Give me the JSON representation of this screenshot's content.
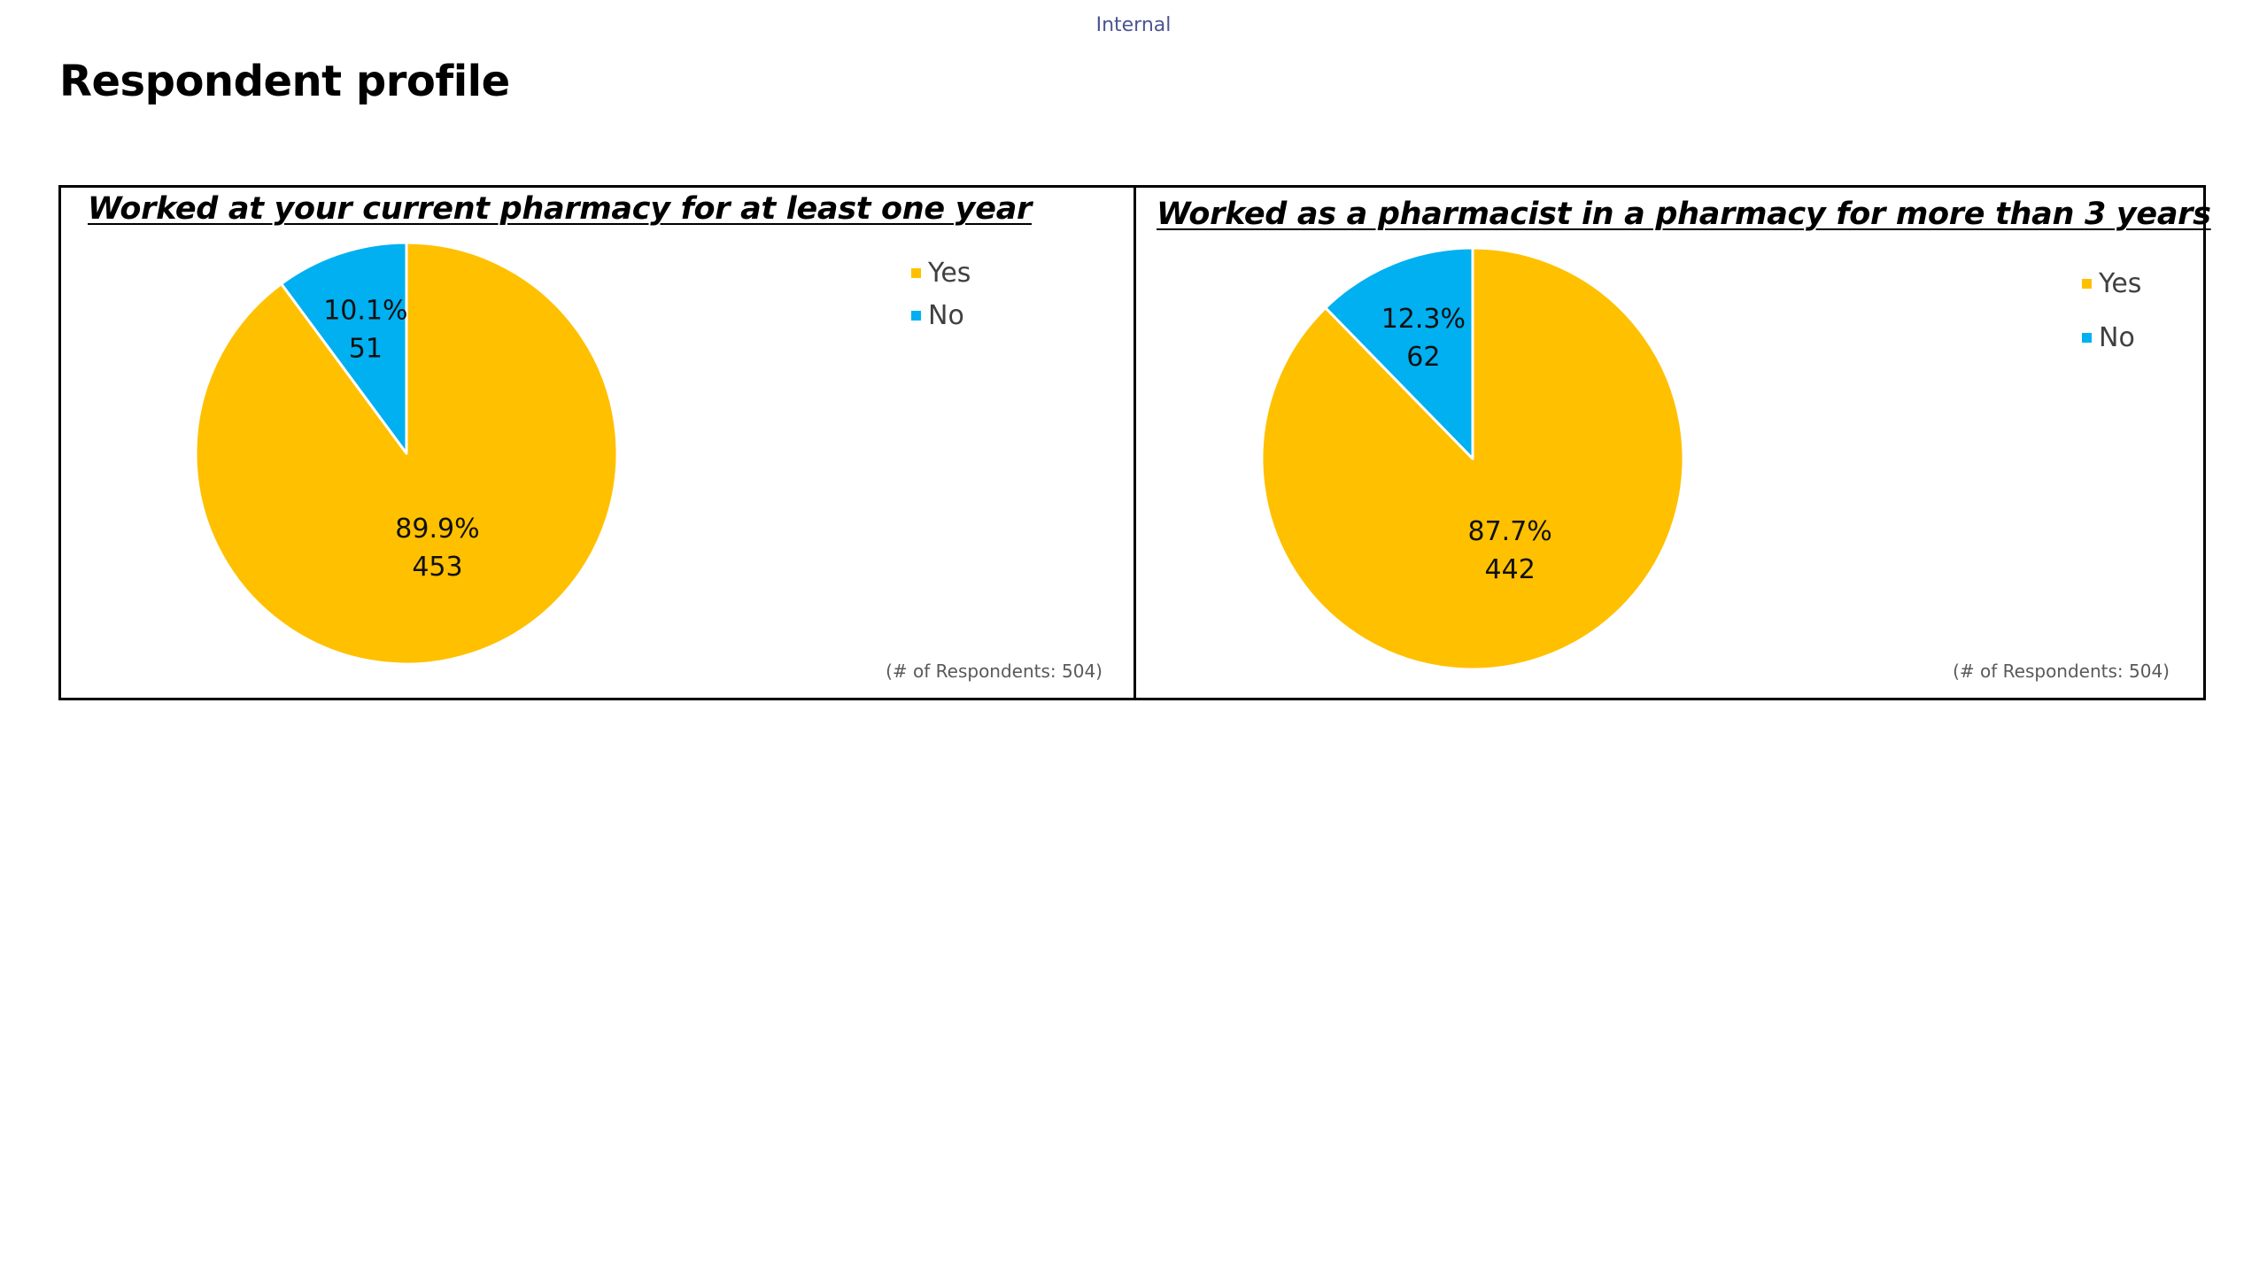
{
  "header": {
    "classification": "Internal",
    "title": "Respondent profile"
  },
  "colors": {
    "yes": "#FFC000",
    "no": "#00B0F0",
    "slice_border": "#FFFFFF"
  },
  "chart_data": [
    {
      "type": "pie",
      "title": "Worked at your current pharmacy for at least one year",
      "categories": [
        "Yes",
        "No"
      ],
      "values": [
        453,
        51
      ],
      "percentages": [
        89.9,
        10.1
      ],
      "labels": [
        {
          "percent": "89.9%",
          "count": "453"
        },
        {
          "percent": "10.1%",
          "count": "51"
        }
      ],
      "legend": {
        "position": "top-right",
        "items": [
          "Yes",
          "No"
        ]
      },
      "footnote": "(# of Respondents: 504)"
    },
    {
      "type": "pie",
      "title": "Worked as a pharmacist in a pharmacy for more than 3 years",
      "categories": [
        "Yes",
        "No"
      ],
      "values": [
        442,
        62
      ],
      "percentages": [
        87.7,
        12.3
      ],
      "labels": [
        {
          "percent": "87.7%",
          "count": "442"
        },
        {
          "percent": "12.3%",
          "count": "62"
        }
      ],
      "legend": {
        "position": "top-right",
        "items": [
          "Yes",
          "No"
        ]
      },
      "footnote": "(# of Respondents: 504)"
    }
  ]
}
